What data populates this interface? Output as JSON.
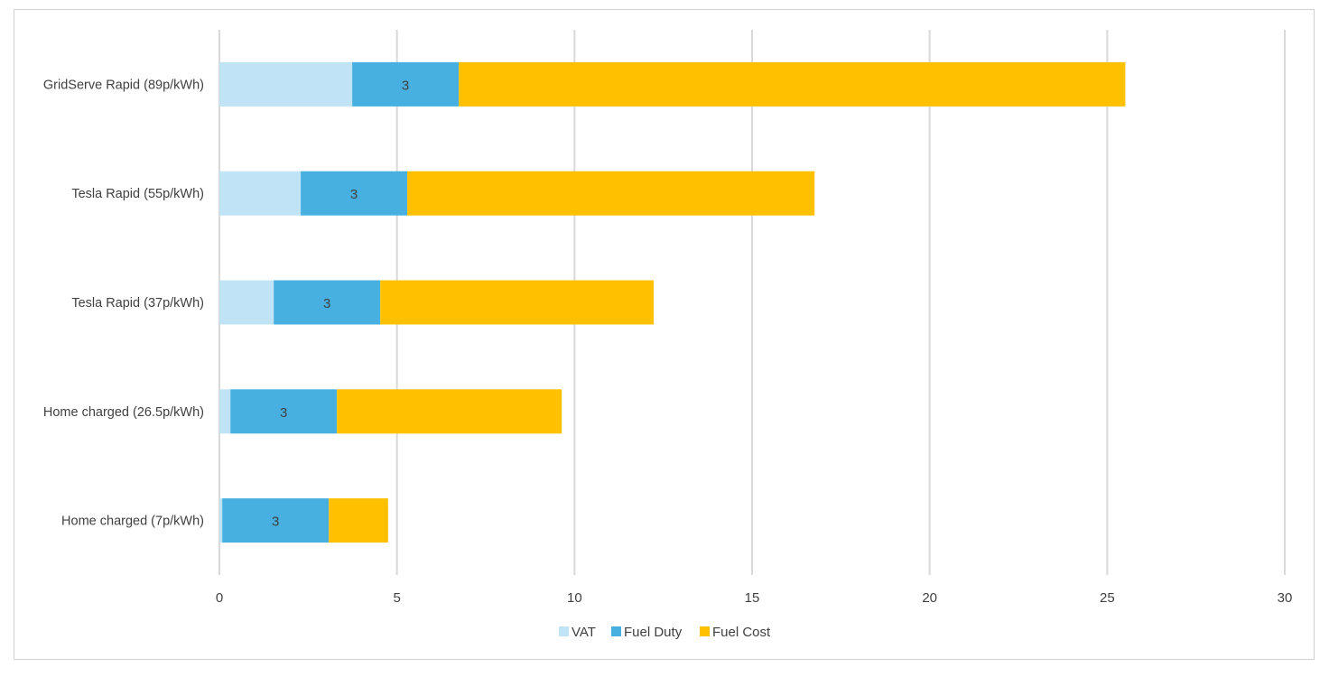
{
  "chart_data": {
    "type": "bar",
    "orientation": "horizontal",
    "stacked": true,
    "title": "",
    "xlabel": "",
    "ylabel": "",
    "xlim": [
      0,
      30
    ],
    "x_ticks": [
      "0",
      "5",
      "10",
      "15",
      "20",
      "25",
      "30"
    ],
    "grid": true,
    "legend_position": "bottom",
    "categories": [
      "GridServe Rapid (89p/kWh)",
      "Tesla Rapid (55p/kWh)",
      "Tesla Rapid (37p/kWh)",
      "Home charged (26.5p/kWh)",
      "Home charged (7p/kWh)"
    ],
    "series": [
      {
        "name": "VAT",
        "color": "#c0e4f5",
        "values": [
          3.74,
          2.29,
          1.53,
          0.31,
          0.08
        ]
      },
      {
        "name": "Fuel Duty",
        "color": "#47b0e0",
        "values": [
          3,
          3,
          3,
          3,
          3
        ],
        "data_labels": [
          "3",
          "3",
          "3",
          "3",
          "3"
        ]
      },
      {
        "name": "Fuel Cost",
        "color": "#ffc000",
        "values": [
          18.77,
          11.47,
          7.7,
          6.33,
          1.67
        ]
      }
    ]
  }
}
